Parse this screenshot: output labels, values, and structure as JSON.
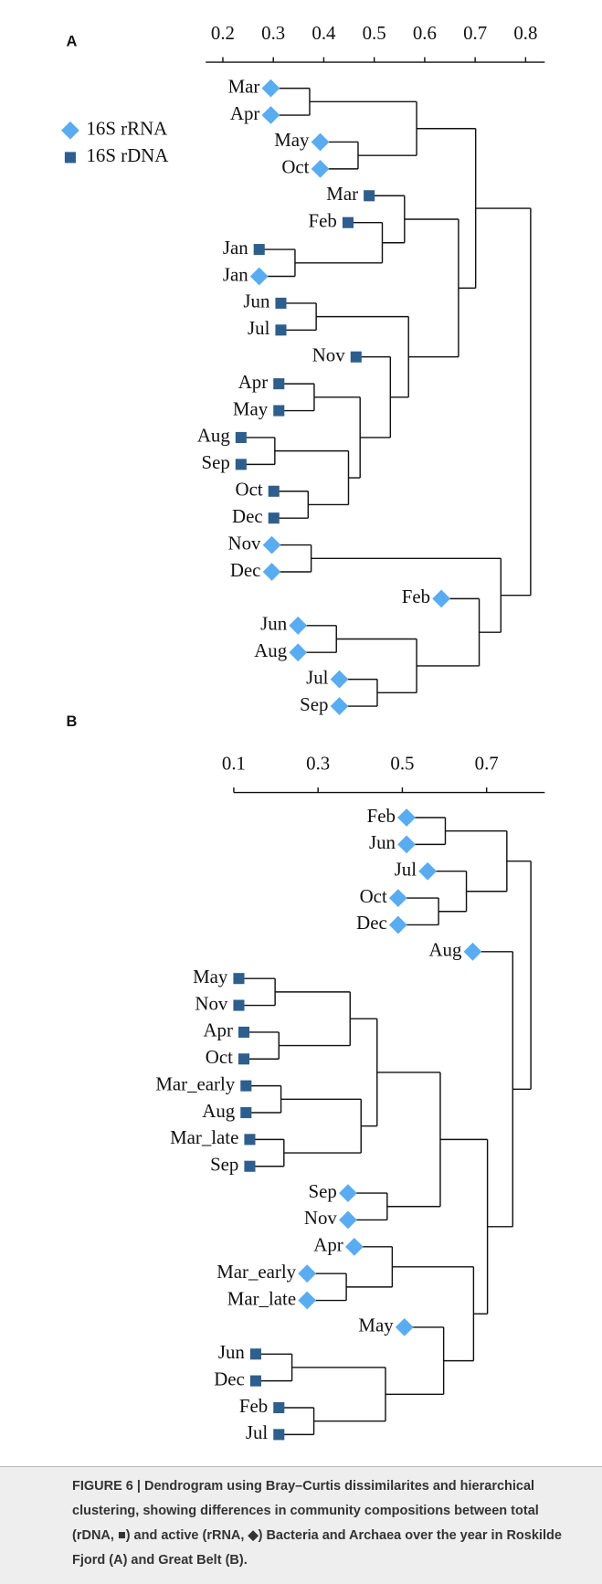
{
  "legend": [
    {
      "name": "16S rRNA",
      "marker": "diamond",
      "color": "#5aacf0"
    },
    {
      "name": "16S rDNA",
      "marker": "square",
      "color": "#2e5e8c"
    }
  ],
  "chart_data": [
    {
      "type": "dendrogram",
      "panel": "A",
      "xlim": [
        0.166,
        0.838
      ],
      "xticks": [
        0.2,
        0.3,
        0.4,
        0.5,
        0.6,
        0.7,
        0.8
      ],
      "leaves": [
        {
          "label": "Mar",
          "group": 0,
          "value": 0.295
        },
        {
          "label": "Apr",
          "group": 0,
          "value": 0.295
        },
        {
          "label": "May",
          "group": 0,
          "value": 0.393
        },
        {
          "label": "Oct",
          "group": 0,
          "value": 0.393
        },
        {
          "label": "Mar",
          "group": 1,
          "value": 0.49
        },
        {
          "label": "Feb",
          "group": 1,
          "value": 0.448
        },
        {
          "label": "Jan",
          "group": 1,
          "value": 0.272
        },
        {
          "label": "Jan",
          "group": 0,
          "value": 0.272
        },
        {
          "label": "Jun",
          "group": 1,
          "value": 0.315
        },
        {
          "label": "Jul",
          "group": 1,
          "value": 0.315
        },
        {
          "label": "Nov",
          "group": 1,
          "value": 0.464
        },
        {
          "label": "Apr",
          "group": 1,
          "value": 0.311
        },
        {
          "label": "May",
          "group": 1,
          "value": 0.311
        },
        {
          "label": "Aug",
          "group": 1,
          "value": 0.236
        },
        {
          "label": "Sep",
          "group": 1,
          "value": 0.236
        },
        {
          "label": "Oct",
          "group": 1,
          "value": 0.301
        },
        {
          "label": "Dec",
          "group": 1,
          "value": 0.301
        },
        {
          "label": "Nov",
          "group": 0,
          "value": 0.297
        },
        {
          "label": "Dec",
          "group": 0,
          "value": 0.297
        },
        {
          "label": "Feb",
          "group": 0,
          "value": 0.633
        },
        {
          "label": "Jun",
          "group": 0,
          "value": 0.349
        },
        {
          "label": "Aug",
          "group": 0,
          "value": 0.349
        },
        {
          "label": "Jul",
          "group": 0,
          "value": 0.431
        },
        {
          "label": "Sep",
          "group": 0,
          "value": 0.431
        }
      ],
      "merges": [
        {
          "children": [
            0,
            1
          ],
          "height": 0.372
        },
        {
          "children": [
            2,
            3
          ],
          "height": 0.468
        },
        {
          "children": [
            24,
            25
          ],
          "height": 0.584
        },
        {
          "children": [
            6,
            7
          ],
          "height": 0.343
        },
        {
          "children": [
            5,
            27
          ],
          "height": 0.516
        },
        {
          "children": [
            4,
            28
          ],
          "height": 0.56
        },
        {
          "children": [
            8,
            9
          ],
          "height": 0.385
        },
        {
          "children": [
            11,
            12
          ],
          "height": 0.381
        },
        {
          "children": [
            13,
            14
          ],
          "height": 0.303
        },
        {
          "children": [
            15,
            16
          ],
          "height": 0.369
        },
        {
          "children": [
            32,
            33
          ],
          "height": 0.449
        },
        {
          "children": [
            31,
            34
          ],
          "height": 0.472
        },
        {
          "children": [
            10,
            35
          ],
          "height": 0.532
        },
        {
          "children": [
            30,
            36
          ],
          "height": 0.568
        },
        {
          "children": [
            29,
            37
          ],
          "height": 0.667
        },
        {
          "children": [
            26,
            38
          ],
          "height": 0.701
        },
        {
          "children": [
            17,
            18
          ],
          "height": 0.375
        },
        {
          "children": [
            20,
            21
          ],
          "height": 0.425
        },
        {
          "children": [
            22,
            23
          ],
          "height": 0.506
        },
        {
          "children": [
            41,
            42
          ],
          "height": 0.584
        },
        {
          "children": [
            19,
            43
          ],
          "height": 0.708
        },
        {
          "children": [
            40,
            44
          ],
          "height": 0.751
        },
        {
          "children": [
            39,
            45
          ],
          "height": 0.81
        }
      ]
    },
    {
      "type": "dendrogram",
      "panel": "B",
      "xlim": [
        0.1,
        0.838
      ],
      "xticks": [
        0.1,
        0.3,
        0.5,
        0.7
      ],
      "leaves": [
        {
          "label": "Feb",
          "group": 0,
          "value": 0.51
        },
        {
          "label": "Jun",
          "group": 0,
          "value": 0.51
        },
        {
          "label": "Jul",
          "group": 0,
          "value": 0.56
        },
        {
          "label": "Oct",
          "group": 0,
          "value": 0.49
        },
        {
          "label": "Dec",
          "group": 0,
          "value": 0.49
        },
        {
          "label": "Aug",
          "group": 0,
          "value": 0.667
        },
        {
          "label": "May",
          "group": 1,
          "value": 0.112
        },
        {
          "label": "Nov",
          "group": 1,
          "value": 0.112
        },
        {
          "label": "Apr",
          "group": 1,
          "value": 0.124
        },
        {
          "label": "Oct",
          "group": 1,
          "value": 0.124
        },
        {
          "label": "Mar_early",
          "group": 1,
          "value": 0.129
        },
        {
          "label": "Aug",
          "group": 1,
          "value": 0.129
        },
        {
          "label": "Mar_late",
          "group": 1,
          "value": 0.138
        },
        {
          "label": "Sep",
          "group": 1,
          "value": 0.138
        },
        {
          "label": "Sep",
          "group": 0,
          "value": 0.371
        },
        {
          "label": "Nov",
          "group": 0,
          "value": 0.371
        },
        {
          "label": "Apr",
          "group": 0,
          "value": 0.386
        },
        {
          "label": "Mar_early",
          "group": 0,
          "value": 0.274
        },
        {
          "label": "Mar_late",
          "group": 0,
          "value": 0.274
        },
        {
          "label": "May",
          "group": 0,
          "value": 0.505
        },
        {
          "label": "Jun",
          "group": 1,
          "value": 0.152
        },
        {
          "label": "Dec",
          "group": 1,
          "value": 0.152
        },
        {
          "label": "Feb",
          "group": 1,
          "value": 0.207
        },
        {
          "label": "Jul",
          "group": 1,
          "value": 0.207
        }
      ],
      "merges": [
        {
          "children": [
            0,
            1
          ],
          "height": 0.602
        },
        {
          "children": [
            3,
            4
          ],
          "height": 0.586
        },
        {
          "children": [
            2,
            25
          ],
          "height": 0.652
        },
        {
          "children": [
            24,
            26
          ],
          "height": 0.748
        },
        {
          "children": [
            6,
            7
          ],
          "height": 0.198
        },
        {
          "children": [
            8,
            9
          ],
          "height": 0.207
        },
        {
          "children": [
            28,
            29
          ],
          "height": 0.376
        },
        {
          "children": [
            10,
            11
          ],
          "height": 0.212
        },
        {
          "children": [
            12,
            13
          ],
          "height": 0.219
        },
        {
          "children": [
            31,
            32
          ],
          "height": 0.402
        },
        {
          "children": [
            30,
            33
          ],
          "height": 0.44
        },
        {
          "children": [
            14,
            15
          ],
          "height": 0.464
        },
        {
          "children": [
            34,
            35
          ],
          "height": 0.59
        },
        {
          "children": [
            17,
            18
          ],
          "height": 0.367
        },
        {
          "children": [
            16,
            37
          ],
          "height": 0.476
        },
        {
          "children": [
            20,
            21
          ],
          "height": 0.238
        },
        {
          "children": [
            22,
            23
          ],
          "height": 0.29
        },
        {
          "children": [
            39,
            40
          ],
          "height": 0.46
        },
        {
          "children": [
            19,
            41
          ],
          "height": 0.598
        },
        {
          "children": [
            38,
            42
          ],
          "height": 0.669
        },
        {
          "children": [
            36,
            43
          ],
          "height": 0.702
        },
        {
          "children": [
            5,
            44
          ],
          "height": 0.762
        },
        {
          "children": [
            27,
            45
          ],
          "height": 0.805
        }
      ]
    }
  ],
  "caption": "FIGURE 6 | Dendrogram using Bray–Curtis dissimilarites and hierarchical clustering, showing differences in community compositions between total (rDNA, ■) and active (rRNA, ◆) Bacteria and Archaea over the year in Roskilde Fjord (A) and Great Belt (B)."
}
